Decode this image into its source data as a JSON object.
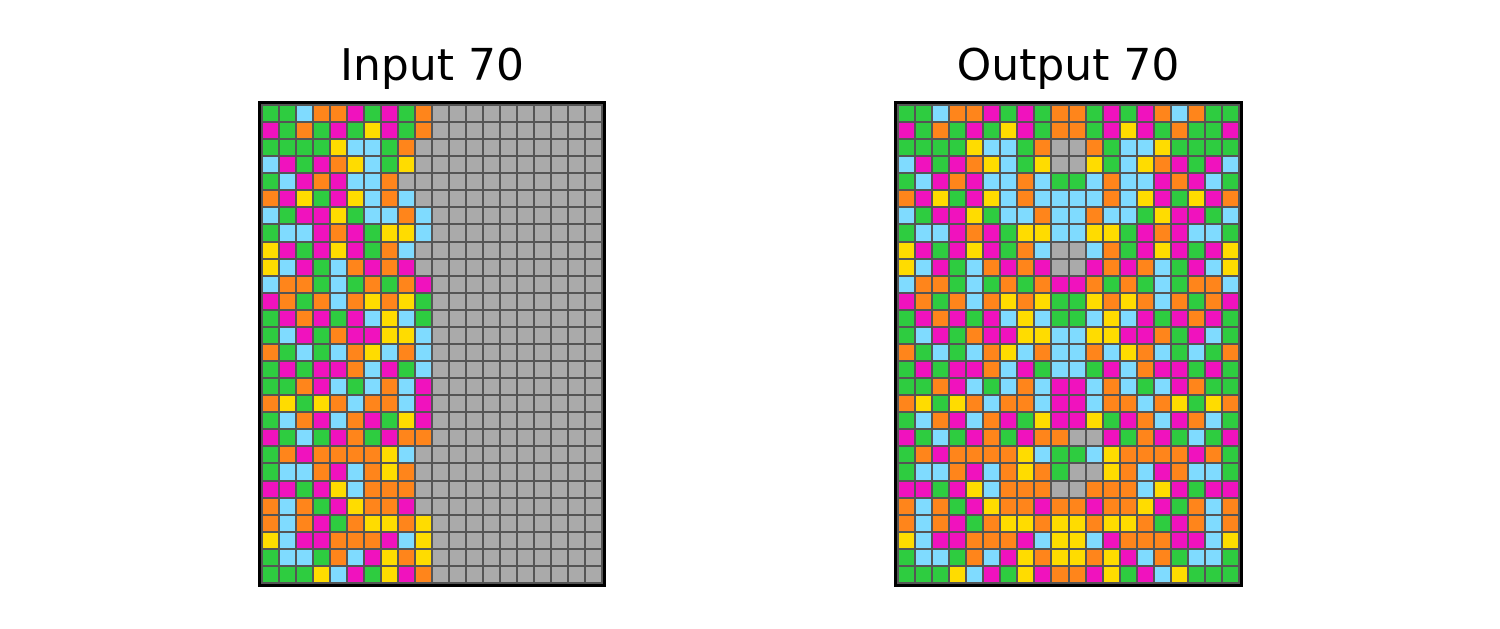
{
  "input": {
    "title": "Input 70",
    "rows": [
      "GGBOOMGMGOXXXXXXXXXX",
      "MGOGMGYMGOXXXXXXXXXX",
      "GGGGYBBGOXXXXXXXXXXX",
      "BMGMOYBGYXXXXXXXXXXX",
      "GBMOMBBOXXXXXXXXXXXX",
      "OMYGMYBOBXXXXXXXXXXX",
      "BGMMYGBBOBXXXXXXXXXX",
      "GBBMOMGYYBXXXXXXXXXX",
      "YMGMYMGOBXXXXXXXXXXX",
      "YBMGBOMOMXXXXXXXXXXX",
      "BOOGBGOGOMXXXXXXXXXX",
      "MOGOBOYOYGXXXXXXXXXX",
      "GMOMGMBYBGXXXXXXXXXX",
      "GBMGOMMYYBXXXXXXXXXX",
      "OGBGBOYBOBXXXXXXXXXX",
      "GMGMMOBMGBXXXXXXXXXX",
      "GGOMBGBOBMXXXXXXXXXX",
      "OYGYOBOOBMXXXXXXXXXX",
      "GBOMBOMGYMXXXXXXXXXX",
      "MGBGMOGMOOXXXXXXXXXX",
      "GOMOOOOYBXXXXXXXXXXX",
      "GBBOMBOYOXXXXXXXXXXX",
      "MMGMYBOOOXXXXXXXXXXX",
      "OBOGMYOOMXXXXXXXXXXX",
      "OBOMGOYYOYXXXXXXXXXX",
      "YBMMOOOMBYXXXXXXXXXX",
      "GBBGOBMYOYXXXXXXXXXX",
      "GGGYBMGYMOXXXXXXXXXX"
    ]
  },
  "output": {
    "title": "Output 70",
    "rows": [
      "GGBOOMGMGOOGMGMOBOGG",
      "MGOGMGYMGOOGMYMGOGGM",
      "GGGGYBBGOXXOGBBYGGGG",
      "BMGMOYBGYXXYGBYOMGMB",
      "GBMOMBBOBGGBOBBMOMBG",
      "OMYGMYBOBBBBOBYMGYMO",
      "BGMMYGBBOBBOBBGYMMGB",
      "GBBMOMGYYBBYYGMOMBBG",
      "YMGMYMGOBXXBOGMYMGMY",
      "YBMGBOMOMXXMOMOBGMBY",
      "BOOGBGOGOMMOGOGBGOOB",
      "MOGOBOYOYGGYOYOBOGOM",
      "GMOMGMBYBGGBYBMGMOMG",
      "GBMGOMMYYBBYYMMOGMBG",
      "OGBGBOYBOBBOBYOBGBGO",
      "GMGMMOBMGBBGMBOMMGMG",
      "GGOMBGBOBMMBOBGBMOGG",
      "OYGYOBOOBMMBOOBOYGYO",
      "GBOMBOMGYMMYGMOBMOBG",
      "MGBGMOGMOOXXMGOMGBGM",
      "GOMOOOOYBGGBYOOOOMOG",
      "GBBOMBOYOGXXYOBMOBBG",
      "MMGMYBOOOXXOOOBYMGMM",
      "OBOGMYOOMOOMOOYMGOBO",
      "OBOMGOYYOYYOYYOGMOBO",
      "YBMMOOOMBYYBMOOOMMBY",
      "GBBGOBMYOYYOYMBOGBBG",
      "GGGYBMGYMOOMYGMBYGGG"
    ]
  },
  "legend": {
    "G": "#2ECC40",
    "B": "#7FDBFF",
    "O": "#FF851B",
    "M": "#F012BE",
    "Y": "#FFDC00",
    "X": "#AAAAAA"
  }
}
